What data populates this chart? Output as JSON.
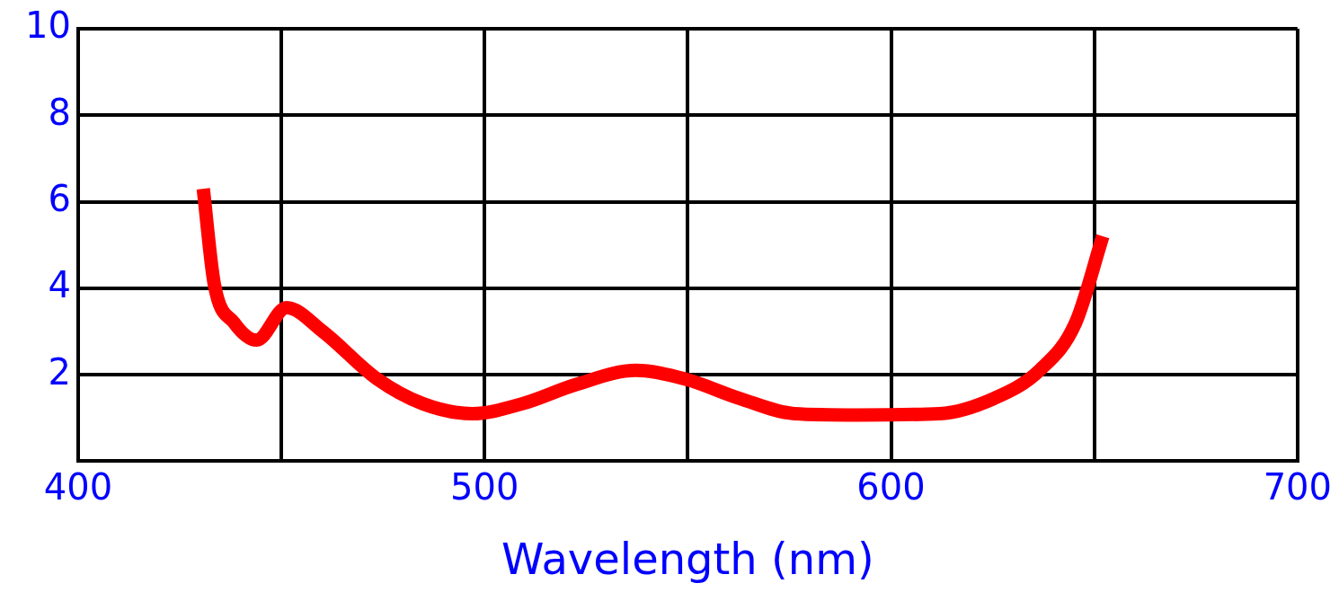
{
  "chart_data": {
    "type": "line",
    "xlabel": "Wavelength (nm)",
    "xlim": [
      400,
      700
    ],
    "xticks": [
      400,
      {
        "value": 450,
        "label": null
      },
      500,
      {
        "value": 550,
        "label": null
      },
      600,
      {
        "value": 650,
        "label": null
      },
      700
    ],
    "ylim": [
      0,
      10
    ],
    "yticks": [
      {
        "value": 0,
        "label": null
      },
      2,
      4,
      6,
      8,
      10
    ],
    "grid": true,
    "legend": false,
    "marker": "none",
    "line_style": "solid",
    "series": [
      {
        "color": "#ff0000",
        "x": [
          430.8,
          433.5,
          438.4,
          443.9,
          451.3,
          460.2,
          473.6,
          484.8,
          497,
          509.3,
          522.7,
          537.2,
          549.4,
          562.8,
          576.2,
          591.8,
          611.9,
          625.3,
          636.5,
          645.4,
          652.1
        ],
        "values": [
          6.3,
          4.1,
          3.2,
          2.8,
          3.55,
          3.0,
          1.9,
          1.33,
          1.1,
          1.33,
          1.78,
          2.1,
          1.9,
          1.45,
          1.1,
          1.07,
          1.1,
          1.45,
          2.1,
          3.2,
          5.2
        ]
      }
    ]
  }
}
